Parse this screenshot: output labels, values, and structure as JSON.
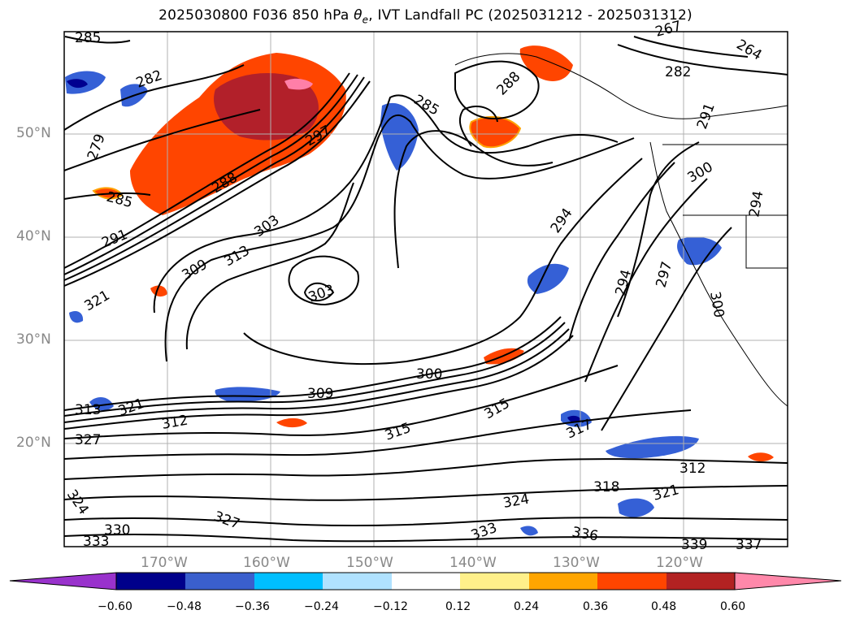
{
  "title": {
    "prefix": "2025030800 F036 850 hPa ",
    "symbol": "θ",
    "subscript": "e",
    "suffix": ", IVT Landfall PC (2025031212 - 2025031312)"
  },
  "map": {
    "latitude_labels": [
      "50°N",
      "40°N",
      "30°N",
      "20°N"
    ],
    "longitude_labels": [
      "170°W",
      "160°W",
      "150°W",
      "140°W",
      "130°W",
      "120°W"
    ],
    "contour_labels": [
      "285",
      "282",
      "279",
      "285",
      "291",
      "288",
      "297",
      "303",
      "309",
      "313",
      "303",
      "321",
      "285",
      "288",
      "294",
      "300",
      "309",
      "315",
      "315",
      "317",
      "312",
      "313",
      "327",
      "321",
      "324",
      "327",
      "330",
      "333",
      "324",
      "333",
      "336",
      "318",
      "321",
      "339",
      "337",
      "312",
      "294",
      "297",
      "300",
      "291",
      "300",
      "294",
      "267",
      "264",
      "282",
      "324"
    ],
    "shading_colors": {
      "strong_positive": "#b2202a",
      "positive": "#ff4500",
      "weak_positive": "#ffa200",
      "pale_positive": "#fff08a",
      "peak_positive": "#ff7fa8",
      "negative": "#3560d6",
      "weak_negative": "#00bfff",
      "pale_negative": "#aee0ff",
      "strong_negative": "#000090"
    }
  },
  "colorbar": {
    "ticks": [
      "−0.60",
      "−0.48",
      "−0.36",
      "−0.24",
      "−0.12",
      "0.12",
      "0.24",
      "0.36",
      "0.48",
      "0.60"
    ],
    "colors": [
      "#9932cc",
      "#00008b",
      "#3a5fcd",
      "#00bfff",
      "#b0e2ff",
      "#ffffff",
      "#fff08a",
      "#ffa500",
      "#ff4500",
      "#b22222",
      "#ff88aa"
    ]
  }
}
